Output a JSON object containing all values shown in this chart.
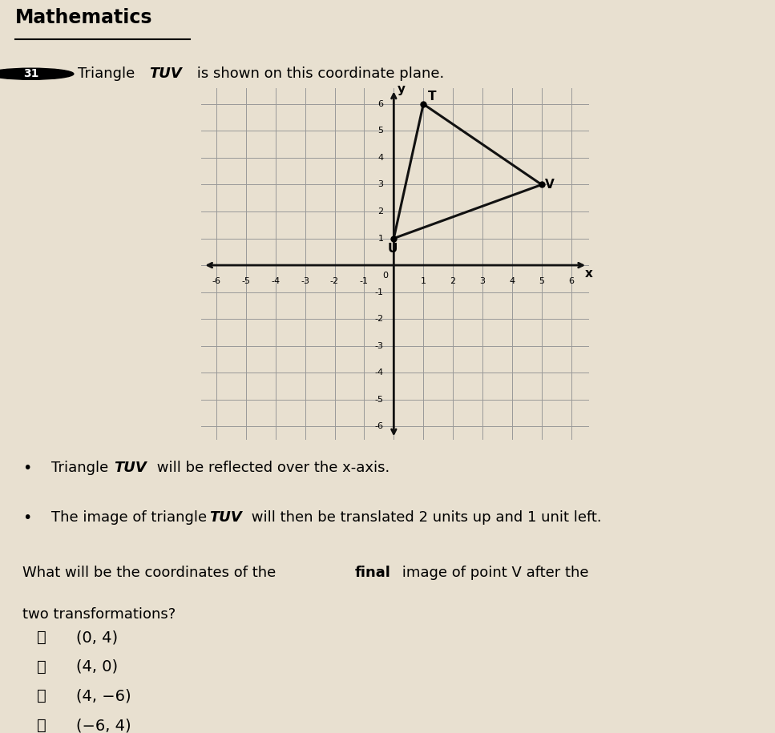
{
  "title": "Mathematics",
  "problem_number": "31",
  "triangle_T": [
    1,
    6
  ],
  "triangle_U": [
    0,
    1
  ],
  "triangle_V": [
    5,
    3
  ],
  "axis_range": [
    -6,
    6
  ],
  "bg_color": "#e8e0d0",
  "grid_color": "#999999",
  "triangle_color": "#111111",
  "axis_color": "#111111",
  "label_T": "T",
  "label_U": "U",
  "label_V": "V",
  "choice_texts": [
    "(0, 4)",
    "(4, 0)",
    "(4, −6)",
    "(−6, 4)"
  ],
  "circle_labels": [
    "Ⓐ",
    "Ⓑ",
    "Ⓒ",
    "Ⓓ"
  ]
}
